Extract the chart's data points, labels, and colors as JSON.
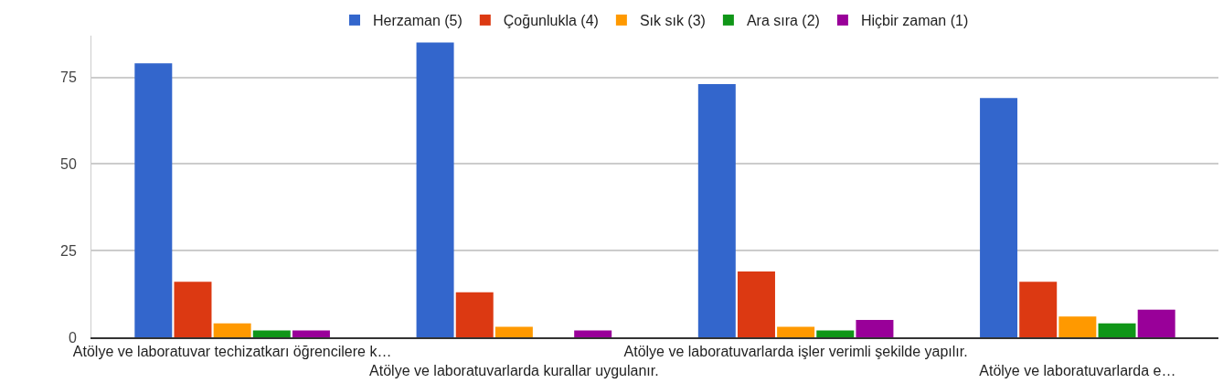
{
  "chart_data": {
    "type": "bar",
    "categories": [
      "Atölye ve laboratuvar techizatkarı öğrencilere k…",
      "Atölye ve laboratuvarlarda kurallar uygulanır.",
      "Atölye ve laboratuvarlarda işler verimli şekilde yapılır.",
      "Atölye ve laboratuvarlarda e…"
    ],
    "series": [
      {
        "name": "Herzaman (5)",
        "color": "#3366cc",
        "values": [
          79,
          85,
          73,
          69
        ]
      },
      {
        "name": "Çoğunlukla (4)",
        "color": "#dc3912",
        "values": [
          16,
          13,
          19,
          16
        ]
      },
      {
        "name": "Sık sık (3)",
        "color": "#ff9900",
        "values": [
          4,
          3,
          3,
          6
        ]
      },
      {
        "name": "Ara sıra (2)",
        "color": "#109618",
        "values": [
          2,
          0,
          2,
          4
        ]
      },
      {
        "name": "Hiçbir zaman (1)",
        "color": "#990099",
        "values": [
          2,
          2,
          5,
          8
        ]
      }
    ],
    "ylim": [
      0,
      87
    ],
    "yticks": [
      0,
      25,
      50,
      75
    ],
    "grid": "y",
    "legend": "top"
  }
}
